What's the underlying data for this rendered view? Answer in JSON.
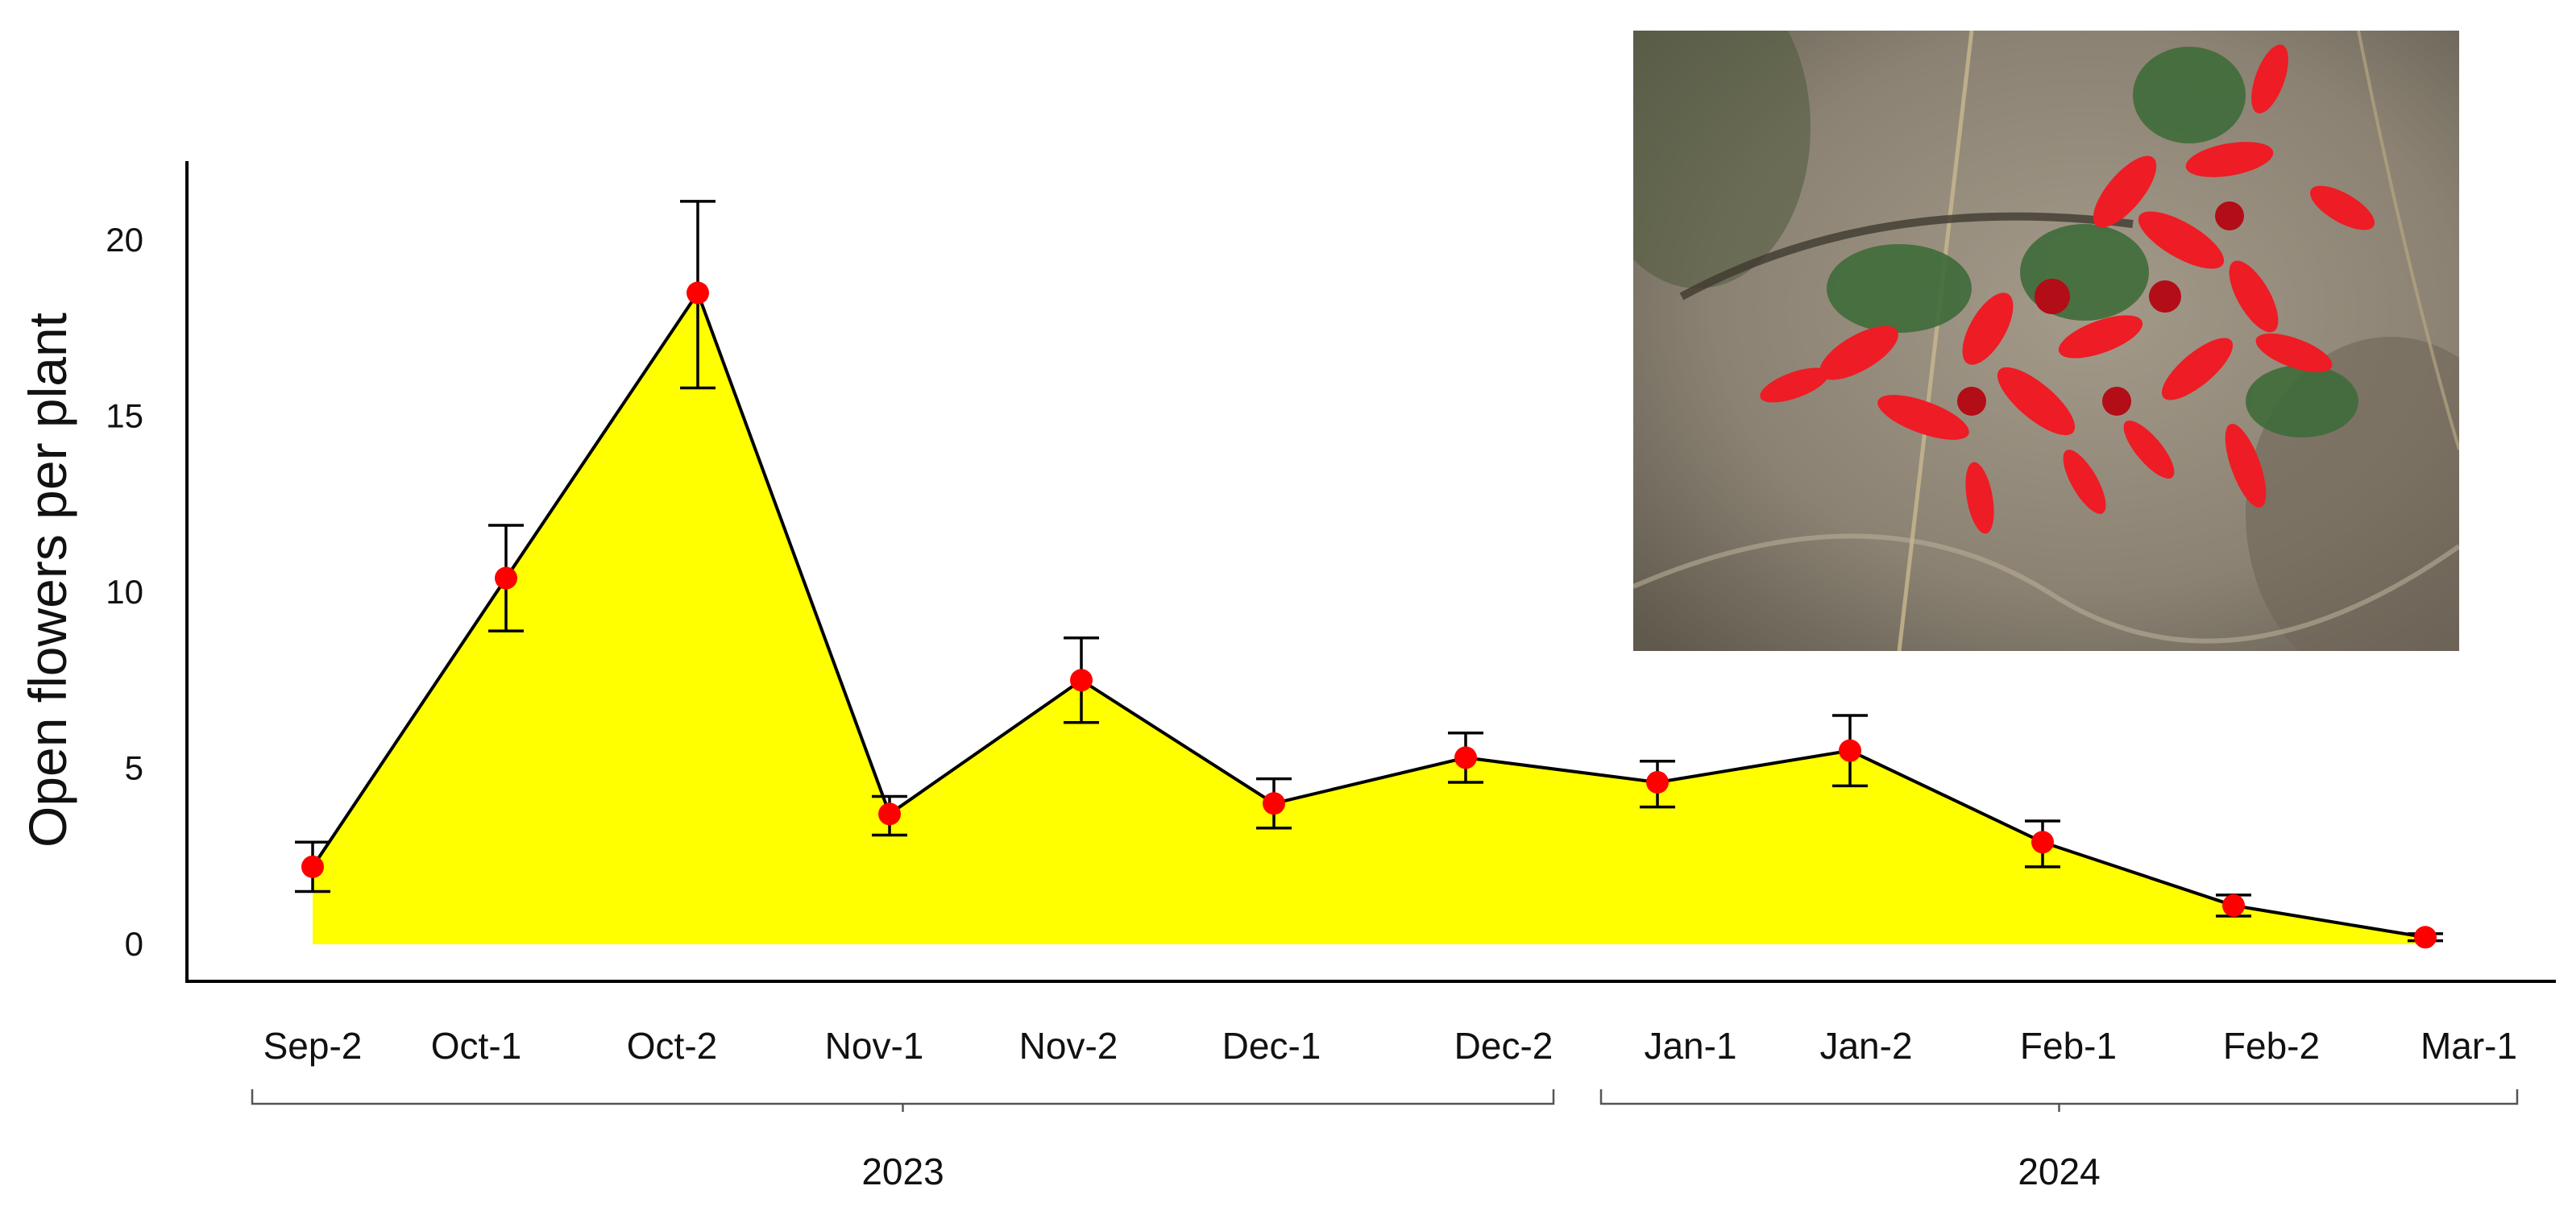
{
  "chart_data": {
    "type": "area",
    "title": "",
    "xlabel": "",
    "ylabel": "Open flowers per plant",
    "ylim": [
      0,
      22
    ],
    "yticks": [
      0,
      5,
      10,
      15,
      20
    ],
    "categories": [
      "Sep-2",
      "Oct-1",
      "Oct-2",
      "Nov-1",
      "Nov-2",
      "Dec-1",
      "Dec-2",
      "Jan-1",
      "Jan-2",
      "Feb-1",
      "Feb-2",
      "Mar-1"
    ],
    "series": [
      {
        "values": [
          2.2,
          10.4,
          18.5,
          3.7,
          7.5,
          4.0,
          5.3,
          4.6,
          5.5,
          2.9,
          1.1,
          0.2
        ],
        "error_low": [
          1.5,
          8.9,
          15.8,
          3.1,
          6.3,
          3.3,
          4.6,
          3.9,
          4.5,
          2.2,
          0.8,
          0.1
        ],
        "error_high": [
          2.9,
          11.9,
          21.1,
          4.2,
          8.7,
          4.7,
          6.0,
          5.2,
          6.5,
          3.5,
          1.4,
          0.3
        ]
      }
    ],
    "year_groups": [
      {
        "label": "2023",
        "from": "Sep-2",
        "to": "Dec-2"
      },
      {
        "label": "2024",
        "from": "Jan-1",
        "to": "Mar-1"
      }
    ],
    "colors": {
      "fill": "#ffff00",
      "line": "#000000",
      "marker": "#ff0000",
      "error_bar": "#000000"
    },
    "grid": false,
    "legend": "none",
    "inset_image": "red-tubular-flower-cluster-photo"
  }
}
